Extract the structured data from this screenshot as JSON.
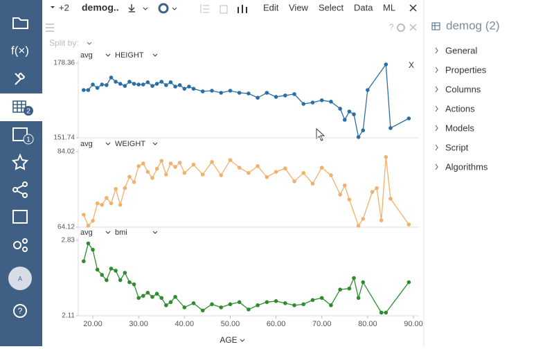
{
  "toolbar": {
    "extra": "+2",
    "title": "demog..",
    "menu": [
      "Edit",
      "View",
      "Select",
      "Data",
      "ML"
    ]
  },
  "split_by": "Split by:",
  "sidebar": {
    "function_icon": "f(×)",
    "badges": [
      "2",
      "1"
    ],
    "avatar": "A"
  },
  "panel": {
    "title": "demog (2)",
    "items": [
      "General",
      "Properties",
      "Columns",
      "Actions",
      "Models",
      "Script",
      "Algorithms"
    ]
  },
  "annotation": "X",
  "chart_data": [
    {
      "type": "line",
      "aggregation": "avg",
      "column": "HEIGHT",
      "color": "#2b6ea6",
      "xlim": [
        16.82,
        91.21
      ],
      "ylim": [
        151.74,
        178.36
      ],
      "yticks": [
        151.74,
        178.36
      ],
      "x": [
        18,
        19,
        20,
        21,
        22,
        23,
        24,
        25,
        26,
        27,
        28,
        29,
        30,
        31,
        32,
        33,
        34,
        35,
        36,
        37,
        38,
        39,
        40,
        41,
        42,
        44,
        46,
        48,
        50,
        52,
        54,
        56,
        58,
        60,
        62,
        64,
        66,
        68,
        70,
        72,
        74,
        75,
        76,
        77,
        78,
        79,
        80,
        84,
        85,
        89
      ],
      "values": [
        168.75,
        168.75,
        170.7,
        169.5,
        170.7,
        170.5,
        173.2,
        171.7,
        170.96,
        170.2,
        171.7,
        170.96,
        170.7,
        170.7,
        171.5,
        170.2,
        170.96,
        171.7,
        170.5,
        171.5,
        169.98,
        170.5,
        169.2,
        169.98,
        169.2,
        168.26,
        168.5,
        167.76,
        168.5,
        167.76,
        167.5,
        166.0,
        167.76,
        166.3,
        166.8,
        167.3,
        163.8,
        164.3,
        165.1,
        164.6,
        162.1,
        158.15,
        161.1,
        160.1,
        152.0,
        154.4,
        168.75,
        177.87,
        155.2,
        158.64
      ]
    },
    {
      "type": "line",
      "aggregation": "avg",
      "column": "WEIGHT",
      "color": "#f2b06a",
      "xlim": [
        16.82,
        91.21
      ],
      "ylim": [
        64.12,
        84.02
      ],
      "yticks": [
        64.12,
        84.02
      ],
      "x": [
        18,
        19,
        20,
        21,
        22,
        23,
        24,
        25,
        26,
        27,
        28,
        29,
        30,
        31,
        32,
        33,
        34,
        35,
        36,
        37,
        38,
        39,
        40,
        42,
        44,
        46,
        48,
        50,
        52,
        54,
        56,
        58,
        60,
        62,
        64,
        66,
        68,
        70,
        72,
        74,
        75,
        76,
        78,
        79,
        81,
        82,
        83,
        84,
        85,
        89
      ],
      "values": [
        67.4,
        64.5,
        65.8,
        70.4,
        70.0,
        71.8,
        70.4,
        74.2,
        70.0,
        74.4,
        77.4,
        76.0,
        80.2,
        80.9,
        78.7,
        77.1,
        79.5,
        81.6,
        78.0,
        80.9,
        80.0,
        81.1,
        78.4,
        80.6,
        78.0,
        81.3,
        77.8,
        81.8,
        79.8,
        78.4,
        80.2,
        77.3,
        78.7,
        79.6,
        76.2,
        78.4,
        75.6,
        79.8,
        77.8,
        72.7,
        75.1,
        71.4,
        64.5,
        66.3,
        73.4,
        74.4,
        65.9,
        82.6,
        71.6,
        64.8
      ]
    },
    {
      "type": "line",
      "aggregation": "avg",
      "column": "bmi",
      "color": "#2e8b2e",
      "xlabel": "AGE",
      "xlim": [
        16.82,
        91.21
      ],
      "ylim": [
        2.11,
        2.83
      ],
      "yticks": [
        2.11,
        2.83
      ],
      "xticks": [
        {
          "value": 20,
          "label": "20.00"
        },
        {
          "value": 30,
          "label": "30.00"
        },
        {
          "value": 40,
          "label": "40.00"
        },
        {
          "value": 50,
          "label": "50.00"
        },
        {
          "value": 60,
          "label": "60.00"
        },
        {
          "value": 70,
          "label": "70.00"
        },
        {
          "value": 80,
          "label": "80.00"
        },
        {
          "value": 90,
          "label": "90.00"
        }
      ],
      "x": [
        18,
        19,
        20,
        21,
        22,
        23,
        24,
        25,
        26,
        27,
        28,
        29,
        30,
        31,
        32,
        33,
        34,
        35,
        36,
        37,
        38,
        40,
        42,
        44,
        46,
        48,
        50,
        52,
        54,
        56,
        58,
        60,
        62,
        64,
        66,
        68,
        70,
        72,
        74,
        76,
        77,
        78,
        79,
        83,
        84,
        89
      ],
      "values": [
        2.63,
        2.8,
        2.74,
        2.55,
        2.5,
        2.45,
        2.56,
        2.54,
        2.45,
        2.52,
        2.43,
        2.41,
        2.28,
        2.3,
        2.33,
        2.29,
        2.32,
        2.28,
        2.21,
        2.24,
        2.29,
        2.19,
        2.23,
        2.16,
        2.22,
        2.19,
        2.22,
        2.24,
        2.17,
        2.21,
        2.24,
        2.25,
        2.23,
        2.21,
        2.22,
        2.26,
        2.28,
        2.21,
        2.36,
        2.37,
        2.47,
        2.28,
        2.43,
        2.14,
        2.14,
        2.43
      ]
    }
  ]
}
